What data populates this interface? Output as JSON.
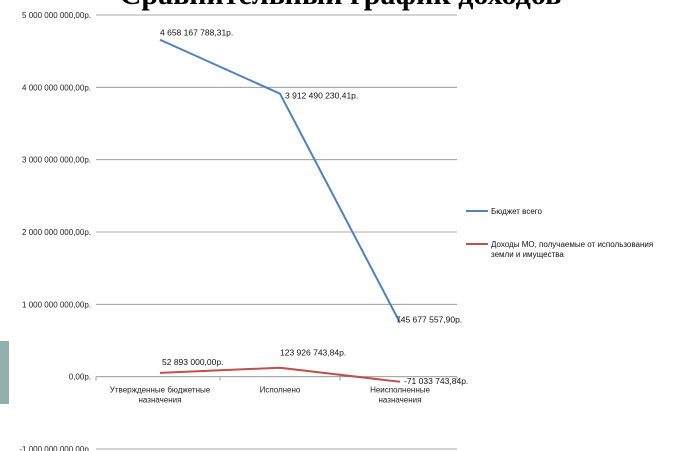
{
  "chart_data": {
    "type": "line",
    "title": "Сравнительный график доходов",
    "categories": [
      "Утвержденные бюджетные назначения",
      "Исполнено",
      "Неисполненные назначения"
    ],
    "category_lines": [
      [
        "Утвержденные бюджетные",
        "назначения"
      ],
      [
        "Исполнено"
      ],
      [
        "Неисполненные",
        "назначения"
      ]
    ],
    "ylim": [
      -1000000000,
      5000000000
    ],
    "y_ticks": [
      {
        "value": 5000000000,
        "label": "5 000 000 000,00р."
      },
      {
        "value": 4000000000,
        "label": "4 000 000 000,00р."
      },
      {
        "value": 3000000000,
        "label": "3 000 000 000,00р."
      },
      {
        "value": 2000000000,
        "label": "2 000 000 000,00р."
      },
      {
        "value": 1000000000,
        "label": "1 000 000 000,00р."
      },
      {
        "value": 0,
        "label": "0,00р."
      },
      {
        "value": -1000000000,
        "label": "-1 000 000 000,00р."
      }
    ],
    "grid": true,
    "legend_position": "right",
    "series": [
      {
        "name": "Бюджет всего",
        "color": "#4f81bd",
        "values": [
          4658167788.31,
          3912490230.41,
          745677557.9
        ],
        "labels": [
          "4 658 167 788,31р.",
          "3 912 490 230,41р.",
          "745 677 557,90р."
        ]
      },
      {
        "name": "Доходы МО, получаемые от использования земли и имущества",
        "legend_lines": [
          "Доходы МО, получаемые от использования",
          "земли и имущества"
        ],
        "color": "#c0504d",
        "values": [
          52893000.0,
          123926743.84,
          -71033743.84
        ],
        "labels": [
          "52 893 000,00р.",
          "123 926 743,84р.",
          "-71 033 743,84р."
        ]
      }
    ]
  }
}
